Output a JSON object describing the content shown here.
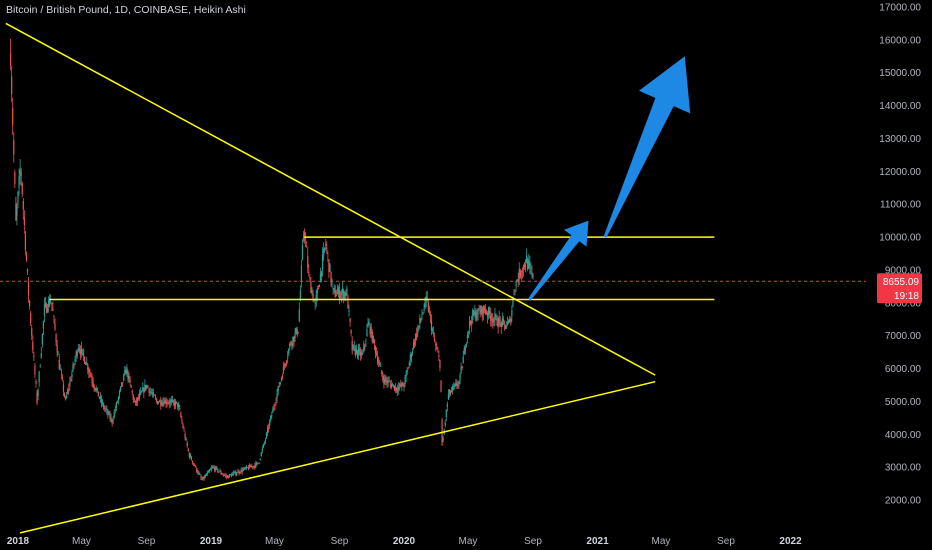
{
  "title": "Bitcoin / British Pound, 1D, COINBASE, Heikin Ashi",
  "colors": {
    "background": "#000000",
    "up": "#26a69a",
    "down": "#ef5350",
    "trendline": "#ffff00",
    "arrow": "#1e88e5",
    "price_line": "#f23645",
    "axis_text": "#b2b5be"
  },
  "chart_data": {
    "type": "candlestick",
    "symbol": "Bitcoin / British Pound",
    "interval": "1D",
    "exchange": "COINBASE",
    "style": "Heikin Ashi",
    "y_axis": {
      "side": "right",
      "ylim": [
        1000,
        17000
      ],
      "ticks": [
        "2000.00",
        "3000.00",
        "4000.00",
        "5000.00",
        "6000.00",
        "7000.00",
        "8000.00",
        "9000.00",
        "10000.00",
        "11000.00",
        "12000.00",
        "13000.00",
        "14000.00",
        "15000.00",
        "16000.00",
        "17000.00"
      ]
    },
    "x_axis": {
      "ticks": [
        {
          "date": "2018-01-01",
          "label": "2018",
          "year": true
        },
        {
          "date": "2018-05-01",
          "label": "May",
          "year": false
        },
        {
          "date": "2018-09-01",
          "label": "Sep",
          "year": false
        },
        {
          "date": "2019-01-01",
          "label": "2019",
          "year": true
        },
        {
          "date": "2019-05-01",
          "label": "May",
          "year": false
        },
        {
          "date": "2019-09-01",
          "label": "Sep",
          "year": false
        },
        {
          "date": "2020-01-01",
          "label": "2020",
          "year": true
        },
        {
          "date": "2020-05-01",
          "label": "May",
          "year": false
        },
        {
          "date": "2020-09-01",
          "label": "Sep",
          "year": false
        },
        {
          "date": "2021-01-01",
          "label": "2021",
          "year": true
        },
        {
          "date": "2021-05-01",
          "label": "May",
          "year": false
        },
        {
          "date": "2021-09-01",
          "label": "Sep",
          "year": false
        },
        {
          "date": "2022-01-01",
          "label": "2022",
          "year": true
        }
      ]
    },
    "current_price": {
      "value": 8655.09,
      "label": "8655.09",
      "countdown": "19:18"
    },
    "price_path": [
      [
        "2017-12-18",
        15600
      ],
      [
        "2017-12-28",
        10400
      ],
      [
        "2018-01-06",
        12200
      ],
      [
        "2018-01-20",
        8500
      ],
      [
        "2018-02-06",
        5000
      ],
      [
        "2018-02-20",
        7800
      ],
      [
        "2018-03-05",
        8100
      ],
      [
        "2018-03-20",
        6100
      ],
      [
        "2018-04-01",
        5000
      ],
      [
        "2018-04-25",
        6700
      ],
      [
        "2018-05-10",
        6200
      ],
      [
        "2018-05-25",
        5500
      ],
      [
        "2018-06-10",
        4900
      ],
      [
        "2018-06-28",
        4400
      ],
      [
        "2018-07-25",
        6000
      ],
      [
        "2018-08-10",
        4900
      ],
      [
        "2018-09-01",
        5500
      ],
      [
        "2018-09-20",
        5000
      ],
      [
        "2018-10-10",
        5000
      ],
      [
        "2018-10-31",
        4900
      ],
      [
        "2018-11-20",
        3400
      ],
      [
        "2018-12-15",
        2600
      ],
      [
        "2019-01-05",
        3000
      ],
      [
        "2019-01-31",
        2700
      ],
      [
        "2019-02-28",
        2900
      ],
      [
        "2019-03-31",
        3100
      ],
      [
        "2019-04-15",
        3900
      ],
      [
        "2019-05-15",
        5800
      ],
      [
        "2019-06-01",
        6800
      ],
      [
        "2019-06-15",
        7200
      ],
      [
        "2019-06-26",
        10400
      ],
      [
        "2019-07-05",
        8800
      ],
      [
        "2019-07-17",
        7900
      ],
      [
        "2019-08-06",
        9800
      ],
      [
        "2019-08-20",
        8300
      ],
      [
        "2019-09-15",
        8300
      ],
      [
        "2019-09-25",
        6600
      ],
      [
        "2019-10-15",
        6400
      ],
      [
        "2019-10-26",
        7400
      ],
      [
        "2019-11-22",
        5700
      ],
      [
        "2019-12-18",
        5400
      ],
      [
        "2020-01-01",
        5500
      ],
      [
        "2020-01-20",
        6800
      ],
      [
        "2020-02-13",
        8100
      ],
      [
        "2020-02-28",
        6800
      ],
      [
        "2020-03-10",
        6100
      ],
      [
        "2020-03-13",
        3600
      ],
      [
        "2020-03-25",
        5200
      ],
      [
        "2020-04-15",
        5600
      ],
      [
        "2020-05-01",
        7200
      ],
      [
        "2020-05-10",
        7600
      ],
      [
        "2020-06-01",
        7800
      ],
      [
        "2020-06-20",
        7500
      ],
      [
        "2020-07-10",
        7300
      ],
      [
        "2020-07-20",
        7400
      ],
      [
        "2020-07-28",
        8500
      ],
      [
        "2020-08-10",
        9000
      ],
      [
        "2020-08-20",
        9300
      ],
      [
        "2020-09-01",
        8700
      ]
    ],
    "trendlines": [
      {
        "from": [
          "2017-12-09",
          16500
        ],
        "to": [
          "2021-04-20",
          5800
        ]
      },
      {
        "from": [
          "2018-01-05",
          1000
        ],
        "to": [
          "2021-04-20",
          5600
        ]
      },
      {
        "from": [
          "2018-03-01",
          8100
        ],
        "to": [
          "2021-08-10",
          8100
        ]
      },
      {
        "from": [
          "2019-06-26",
          10000
        ],
        "to": [
          "2021-08-10",
          10000
        ]
      }
    ],
    "annotations": [
      {
        "type": "arrow",
        "from": [
          "2020-08-25",
          8100
        ],
        "to": [
          "2020-12-15",
          10500
        ]
      },
      {
        "type": "arrow",
        "from": [
          "2021-01-15",
          10000
        ],
        "to": [
          "2021-06-15",
          15500
        ]
      }
    ]
  }
}
